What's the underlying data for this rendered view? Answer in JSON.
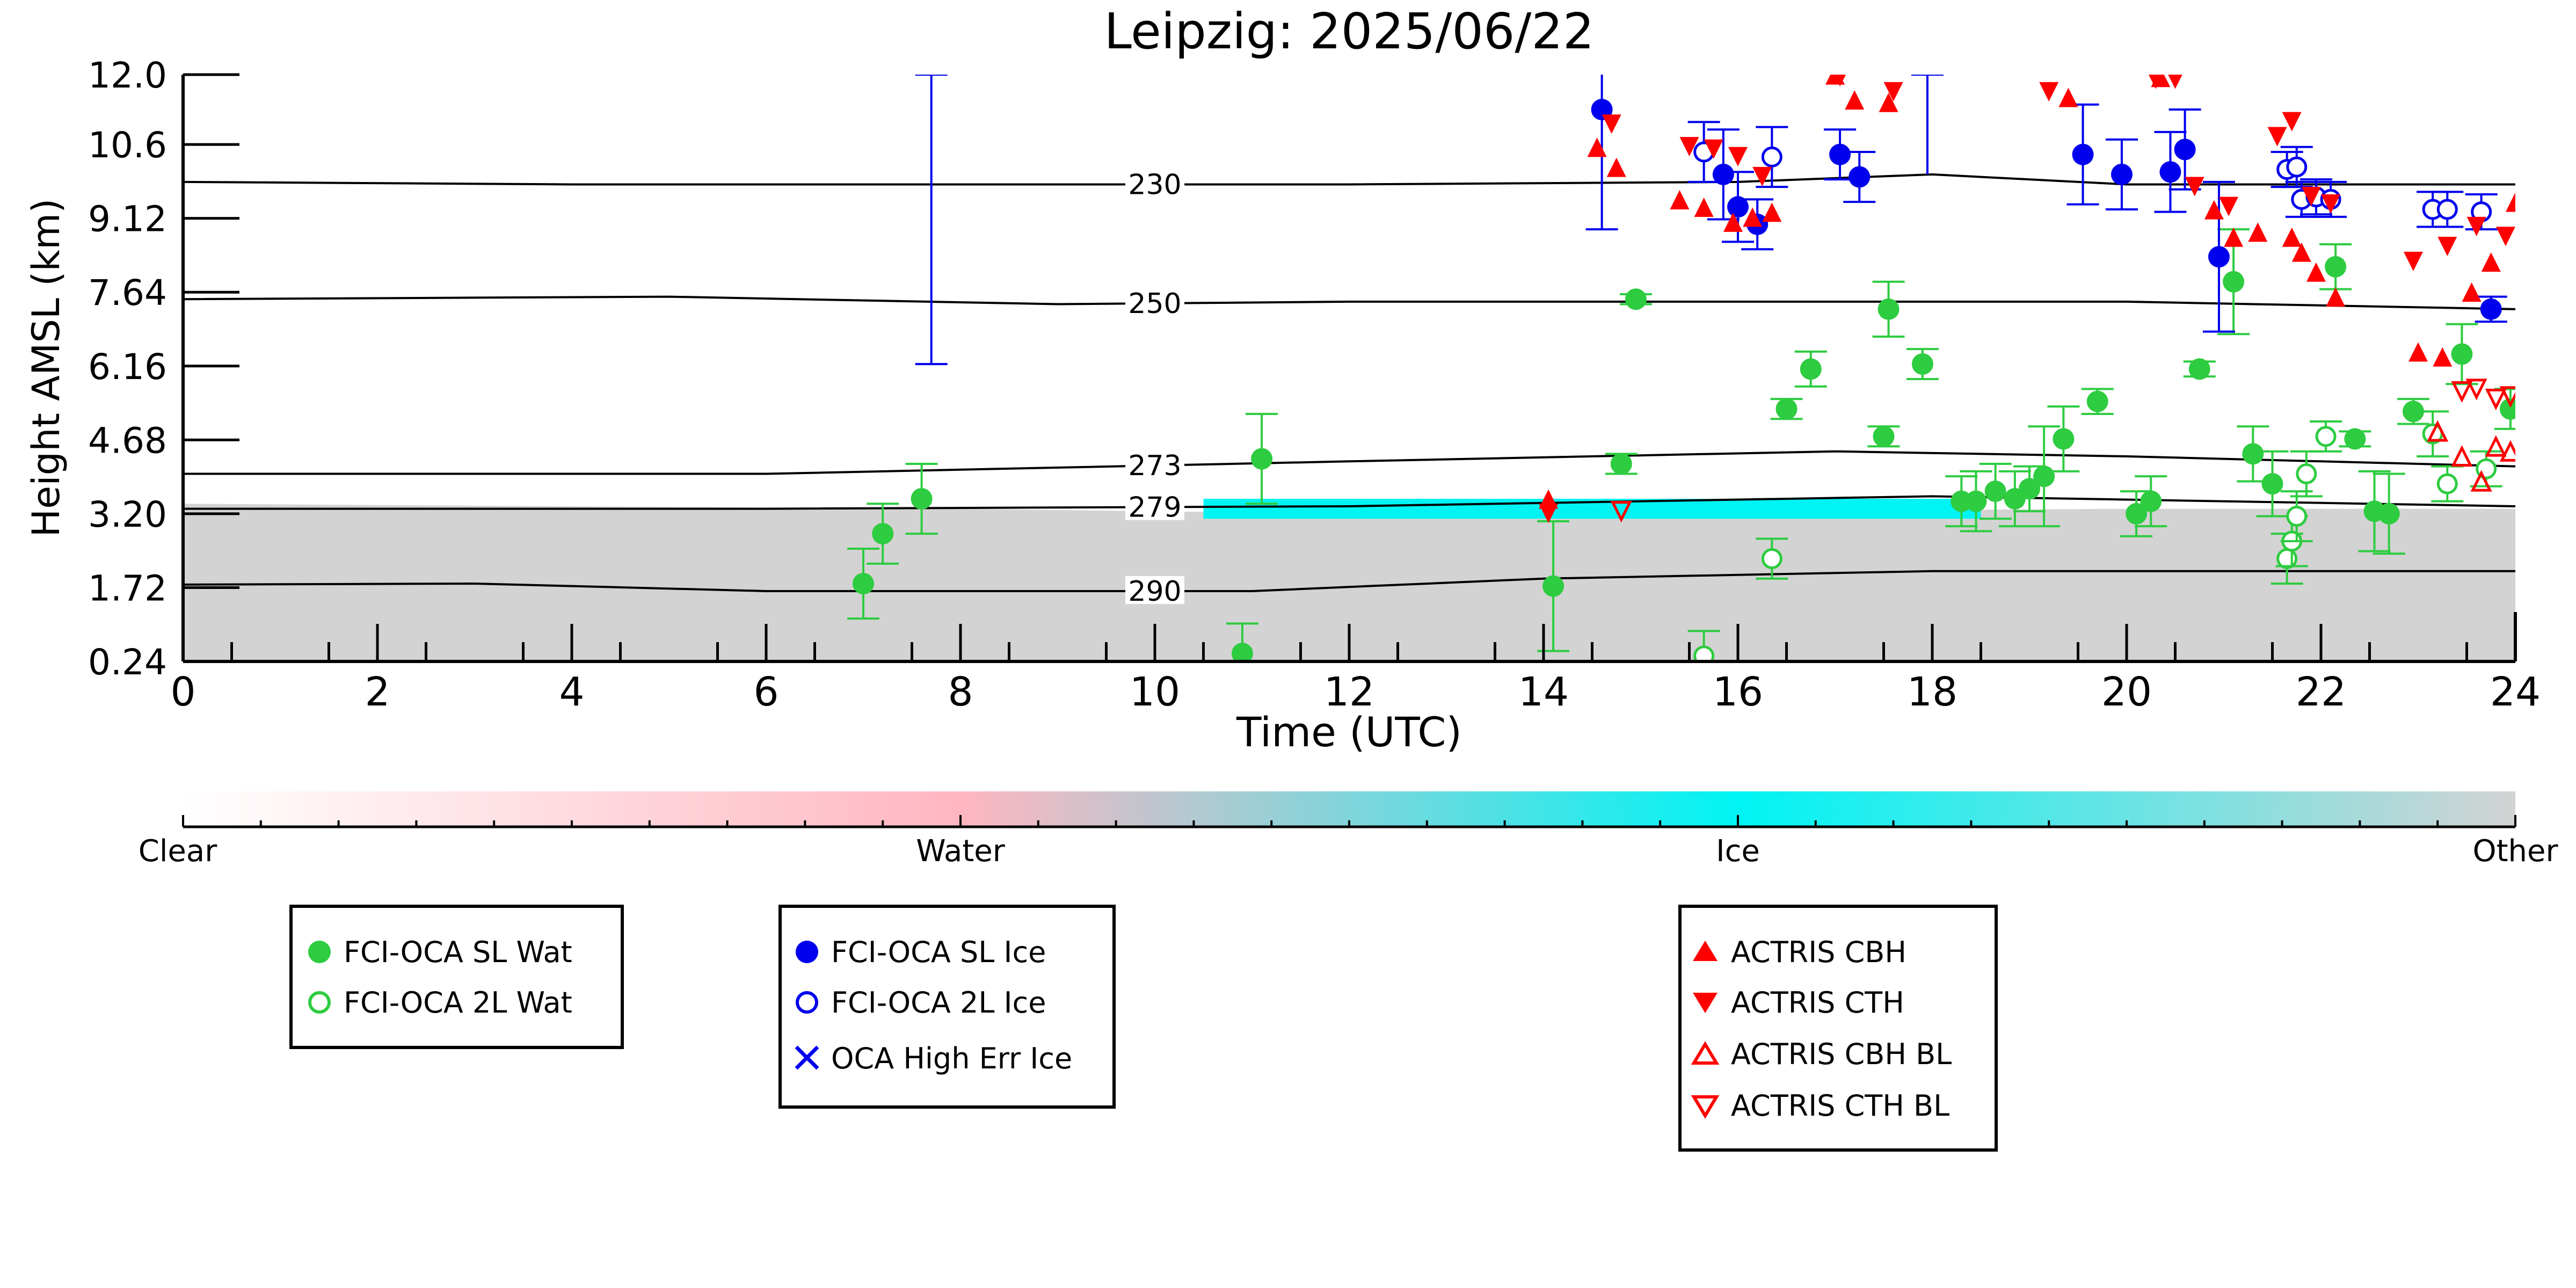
{
  "chart_data": {
    "type": "scatter",
    "title": "Leipzig: 2025/06/22",
    "xlabel": "Time (UTC)",
    "ylabel": "Height AMSL (km)",
    "xlim": [
      0,
      24
    ],
    "ylim": [
      0.24,
      12.0
    ],
    "x_ticks": [
      0,
      2,
      4,
      6,
      8,
      10,
      12,
      14,
      16,
      18,
      20,
      22,
      24
    ],
    "x_tick_labels": [
      "0",
      "2",
      "4",
      "6",
      "8",
      "10",
      "12",
      "14",
      "16",
      "18",
      "20",
      "22",
      "24"
    ],
    "y_ticks": [
      0.24,
      1.72,
      3.2,
      4.68,
      6.16,
      7.64,
      9.12,
      10.6,
      12.0
    ],
    "y_tick_labels": [
      "0.24",
      "1.72",
      "3.20",
      "4.68",
      "6.16",
      "7.64",
      "9.12",
      "10.6",
      "12.0"
    ],
    "grid": false,
    "colorbar": {
      "labels": [
        "Clear",
        "Water",
        "Ice",
        "Other"
      ],
      "colors": [
        "#ffffff",
        "#ffb6c1",
        "#00f4f4",
        "#d3d3d3"
      ]
    },
    "background_fields": [
      {
        "name": "other_low",
        "color": "#d3d3d3",
        "x": [
          0,
          4,
          8,
          12,
          16,
          20,
          24
        ],
        "top": [
          3.4,
          3.35,
          3.3,
          3.2,
          3.25,
          3.3,
          3.3
        ]
      },
      {
        "name": "ice_layer_low",
        "color": "#00f4f4",
        "x": [
          10.5,
          18.5
        ],
        "y": [
          3.1,
          3.5
        ]
      }
    ],
    "isotherms": [
      {
        "label": "230",
        "x": [
          0,
          4,
          8,
          12,
          16,
          18,
          20,
          22,
          24
        ],
        "y": [
          9.85,
          9.8,
          9.8,
          9.8,
          9.85,
          10.0,
          9.8,
          9.8,
          9.8
        ]
      },
      {
        "label": "250",
        "x": [
          0,
          5,
          9,
          12,
          16,
          20,
          24
        ],
        "y": [
          7.5,
          7.55,
          7.4,
          7.45,
          7.45,
          7.45,
          7.3
        ]
      },
      {
        "label": "273",
        "x": [
          0,
          6,
          12,
          17,
          20,
          24
        ],
        "y": [
          4.0,
          4.0,
          4.25,
          4.45,
          4.35,
          4.15
        ]
      },
      {
        "label": "279",
        "x": [
          0,
          6,
          12,
          18,
          24
        ],
        "y": [
          3.3,
          3.3,
          3.35,
          3.55,
          3.35
        ]
      },
      {
        "label": "290",
        "x": [
          0,
          3,
          6,
          11,
          14,
          18,
          24
        ],
        "y": [
          1.78,
          1.8,
          1.65,
          1.65,
          1.9,
          2.05,
          2.05
        ]
      }
    ],
    "legend_groups": [
      {
        "entries": [
          {
            "label": "FCI-OCA SL Wat",
            "marker": "filled-circle",
            "color": "#2ecc40"
          },
          {
            "label": "FCI-OCA 2L Wat",
            "marker": "open-circle",
            "color": "#2ecc40"
          }
        ]
      },
      {
        "entries": [
          {
            "label": "FCI-OCA SL Ice",
            "marker": "filled-circle",
            "color": "#0000ee"
          },
          {
            "label": "FCI-OCA 2L Ice",
            "marker": "open-circle",
            "color": "#0000ee"
          },
          {
            "label": "OCA High Err Ice",
            "marker": "x",
            "color": "#0000ee"
          }
        ]
      },
      {
        "entries": [
          {
            "label": "ACTRIS CBH",
            "marker": "triangle-up",
            "color": "#ff0000"
          },
          {
            "label": "ACTRIS CTH",
            "marker": "triangle-down",
            "color": "#ff0000"
          },
          {
            "label": "ACTRIS CBH BL",
            "marker": "open-triangle-up",
            "color": "#ff0000"
          },
          {
            "label": "ACTRIS CTH BL",
            "marker": "open-triangle-down",
            "color": "#ff0000"
          }
        ]
      }
    ],
    "series": [
      {
        "name": "FCI-OCA SL Wat",
        "color": "#2ecc40",
        "filled": true,
        "points": [
          {
            "x": 7.0,
            "y": 1.8,
            "err": 0.7
          },
          {
            "x": 7.2,
            "y": 2.8,
            "err": 0.6
          },
          {
            "x": 7.6,
            "y": 3.5,
            "err": 0.7
          },
          {
            "x": 10.9,
            "y": 0.4,
            "err": 0.6
          },
          {
            "x": 11.1,
            "y": 4.3,
            "err": 0.9
          },
          {
            "x": 14.1,
            "y": 1.75,
            "err": 1.3
          },
          {
            "x": 14.8,
            "y": 4.2,
            "err": 0.2
          },
          {
            "x": 14.95,
            "y": 7.5,
            "err": 0.1
          },
          {
            "x": 16.5,
            "y": 5.3,
            "err": 0.2
          },
          {
            "x": 16.75,
            "y": 6.1,
            "err": 0.35
          },
          {
            "x": 17.5,
            "y": 4.75,
            "err": 0.2
          },
          {
            "x": 17.55,
            "y": 7.3,
            "err": 0.55
          },
          {
            "x": 17.9,
            "y": 6.2,
            "err": 0.3
          },
          {
            "x": 18.3,
            "y": 3.45,
            "err": 0.5
          },
          {
            "x": 18.45,
            "y": 3.45,
            "err": 0.6
          },
          {
            "x": 18.65,
            "y": 3.65,
            "err": 0.55
          },
          {
            "x": 18.85,
            "y": 3.5,
            "err": 0.55
          },
          {
            "x": 19.0,
            "y": 3.7,
            "err": 0.45
          },
          {
            "x": 19.15,
            "y": 3.95,
            "err": 1.0
          },
          {
            "x": 19.35,
            "y": 4.7,
            "err": 0.65
          },
          {
            "x": 19.7,
            "y": 5.45,
            "err": 0.25
          },
          {
            "x": 20.1,
            "y": 3.2,
            "err": 0.45
          },
          {
            "x": 20.25,
            "y": 3.45,
            "err": 0.5
          },
          {
            "x": 20.75,
            "y": 6.1,
            "err": 0.15
          },
          {
            "x": 21.1,
            "y": 7.85,
            "err": 1.05
          },
          {
            "x": 21.3,
            "y": 4.4,
            "err": 0.55
          },
          {
            "x": 21.5,
            "y": 3.8,
            "err": 0.65
          },
          {
            "x": 22.15,
            "y": 8.15,
            "err": 0.45
          },
          {
            "x": 22.35,
            "y": 4.7,
            "err": 0.15
          },
          {
            "x": 22.55,
            "y": 3.25,
            "err": 0.8
          },
          {
            "x": 22.7,
            "y": 3.2,
            "err": 0.8
          },
          {
            "x": 22.95,
            "y": 5.25,
            "err": 0.25
          },
          {
            "x": 23.45,
            "y": 6.4,
            "err": 0.6
          },
          {
            "x": 23.95,
            "y": 5.3,
            "err": 0.4
          }
        ]
      },
      {
        "name": "FCI-OCA 2L Wat",
        "color": "#2ecc40",
        "filled": false,
        "points": [
          {
            "x": 15.65,
            "y": 0.35,
            "err": 0.5
          },
          {
            "x": 16.35,
            "y": 2.3,
            "err": 0.4
          },
          {
            "x": 21.65,
            "y": 2.3,
            "err": 0.5
          },
          {
            "x": 21.7,
            "y": 2.65,
            "err": 0.5
          },
          {
            "x": 21.75,
            "y": 3.15,
            "err": 0.5
          },
          {
            "x": 21.85,
            "y": 4.0,
            "err": 0.45
          },
          {
            "x": 22.05,
            "y": 4.75,
            "err": 0.3
          },
          {
            "x": 23.15,
            "y": 4.8,
            "err": 0.45
          },
          {
            "x": 23.3,
            "y": 3.8,
            "err": 0.35
          },
          {
            "x": 23.7,
            "y": 4.1,
            "err": 0.35
          }
        ]
      },
      {
        "name": "FCI-OCA SL Ice",
        "color": "#0000ee",
        "filled": true,
        "points": [
          {
            "x": 14.6,
            "y": 11.3,
            "err": 2.4
          },
          {
            "x": 15.85,
            "y": 10.0,
            "err": 0.9
          },
          {
            "x": 16.0,
            "y": 9.35,
            "err": 0.7
          },
          {
            "x": 16.2,
            "y": 9.0,
            "err": 0.5
          },
          {
            "x": 17.05,
            "y": 10.4,
            "err": 0.5
          },
          {
            "x": 17.25,
            "y": 9.95,
            "err": 0.5
          },
          {
            "x": 19.55,
            "y": 10.4,
            "err": 1.0
          },
          {
            "x": 19.95,
            "y": 10.0,
            "err": 0.7
          },
          {
            "x": 20.45,
            "y": 10.05,
            "err": 0.8
          },
          {
            "x": 20.6,
            "y": 10.5,
            "err": 0.8
          },
          {
            "x": 20.95,
            "y": 8.35,
            "err": 1.5
          },
          {
            "x": 23.75,
            "y": 7.3,
            "err": 0.25
          }
        ]
      },
      {
        "name": "FCI-OCA 2L Ice",
        "color": "#0000ee",
        "filled": false,
        "points": [
          {
            "x": 15.65,
            "y": 10.45,
            "err": 0.6
          },
          {
            "x": 16.35,
            "y": 10.35,
            "err": 0.6
          },
          {
            "x": 21.65,
            "y": 10.1,
            "err": 0.35
          },
          {
            "x": 21.75,
            "y": 10.15,
            "err": 0.4
          },
          {
            "x": 21.8,
            "y": 9.5,
            "err": 0.35
          },
          {
            "x": 21.95,
            "y": 9.55,
            "err": 0.35
          },
          {
            "x": 22.1,
            "y": 9.5,
            "err": 0.35
          },
          {
            "x": 23.15,
            "y": 9.3,
            "err": 0.35
          },
          {
            "x": 23.3,
            "y": 9.3,
            "err": 0.35
          },
          {
            "x": 23.65,
            "y": 9.25,
            "err": 0.35
          }
        ]
      },
      {
        "name": "OCA High Err Ice",
        "color": "#0000ee",
        "filled": false,
        "points": [
          {
            "x": 7.7,
            "y": 9.5,
            "err_low": 3.3,
            "err_high": 2.5
          },
          {
            "x": 17.95,
            "y": 10.0,
            "err_low": 0.0,
            "err_high": 2.0
          }
        ]
      },
      {
        "name": "ACTRIS CBH",
        "color": "#ff0000",
        "marker": "triangle-up",
        "points": [
          {
            "x": 14.55,
            "y": 10.5
          },
          {
            "x": 14.75,
            "y": 10.1
          },
          {
            "x": 14.05,
            "y": 3.45
          },
          {
            "x": 15.4,
            "y": 9.45
          },
          {
            "x": 15.65,
            "y": 9.3
          },
          {
            "x": 15.95,
            "y": 9.0
          },
          {
            "x": 16.15,
            "y": 9.1
          },
          {
            "x": 16.35,
            "y": 9.2
          },
          {
            "x": 17.0,
            "y": 11.95
          },
          {
            "x": 17.2,
            "y": 11.45
          },
          {
            "x": 17.55,
            "y": 11.4
          },
          {
            "x": 19.4,
            "y": 11.5
          },
          {
            "x": 20.35,
            "y": 11.9
          },
          {
            "x": 20.9,
            "y": 9.25
          },
          {
            "x": 21.1,
            "y": 8.7
          },
          {
            "x": 21.35,
            "y": 8.8
          },
          {
            "x": 21.7,
            "y": 8.7
          },
          {
            "x": 21.8,
            "y": 8.4
          },
          {
            "x": 21.95,
            "y": 8.0
          },
          {
            "x": 22.15,
            "y": 7.5
          },
          {
            "x": 23.0,
            "y": 6.4
          },
          {
            "x": 23.25,
            "y": 6.3
          },
          {
            "x": 23.55,
            "y": 7.6
          },
          {
            "x": 23.75,
            "y": 8.2
          },
          {
            "x": 24.0,
            "y": 9.4
          }
        ]
      },
      {
        "name": "ACTRIS CTH",
        "color": "#ff0000",
        "marker": "triangle-down",
        "points": [
          {
            "x": 14.7,
            "y": 11.05
          },
          {
            "x": 14.05,
            "y": 3.25
          },
          {
            "x": 15.5,
            "y": 10.6
          },
          {
            "x": 15.75,
            "y": 10.55
          },
          {
            "x": 16.0,
            "y": 10.4
          },
          {
            "x": 16.25,
            "y": 10.0
          },
          {
            "x": 17.05,
            "y": 12.0
          },
          {
            "x": 17.6,
            "y": 11.7
          },
          {
            "x": 19.2,
            "y": 11.7
          },
          {
            "x": 20.3,
            "y": 11.95
          },
          {
            "x": 20.5,
            "y": 11.95
          },
          {
            "x": 20.7,
            "y": 9.8
          },
          {
            "x": 21.05,
            "y": 9.4
          },
          {
            "x": 21.55,
            "y": 10.8
          },
          {
            "x": 21.7,
            "y": 11.1
          },
          {
            "x": 21.9,
            "y": 9.6
          },
          {
            "x": 22.1,
            "y": 9.45
          },
          {
            "x": 22.95,
            "y": 8.3
          },
          {
            "x": 23.3,
            "y": 8.6
          },
          {
            "x": 23.6,
            "y": 9.0
          },
          {
            "x": 23.9,
            "y": 8.8
          }
        ]
      },
      {
        "name": "ACTRIS CBH BL",
        "color": "#ff0000",
        "marker": "open-triangle-up",
        "points": [
          {
            "x": 23.2,
            "y": 4.8
          },
          {
            "x": 23.45,
            "y": 4.3
          },
          {
            "x": 23.65,
            "y": 3.8
          },
          {
            "x": 23.8,
            "y": 4.5
          },
          {
            "x": 23.95,
            "y": 4.4
          }
        ]
      },
      {
        "name": "ACTRIS CTH BL",
        "color": "#ff0000",
        "marker": "open-triangle-down",
        "points": [
          {
            "x": 14.8,
            "y": 3.3
          },
          {
            "x": 23.45,
            "y": 5.7
          },
          {
            "x": 23.6,
            "y": 5.75
          },
          {
            "x": 23.8,
            "y": 5.55
          },
          {
            "x": 23.95,
            "y": 5.6
          }
        ]
      }
    ]
  }
}
